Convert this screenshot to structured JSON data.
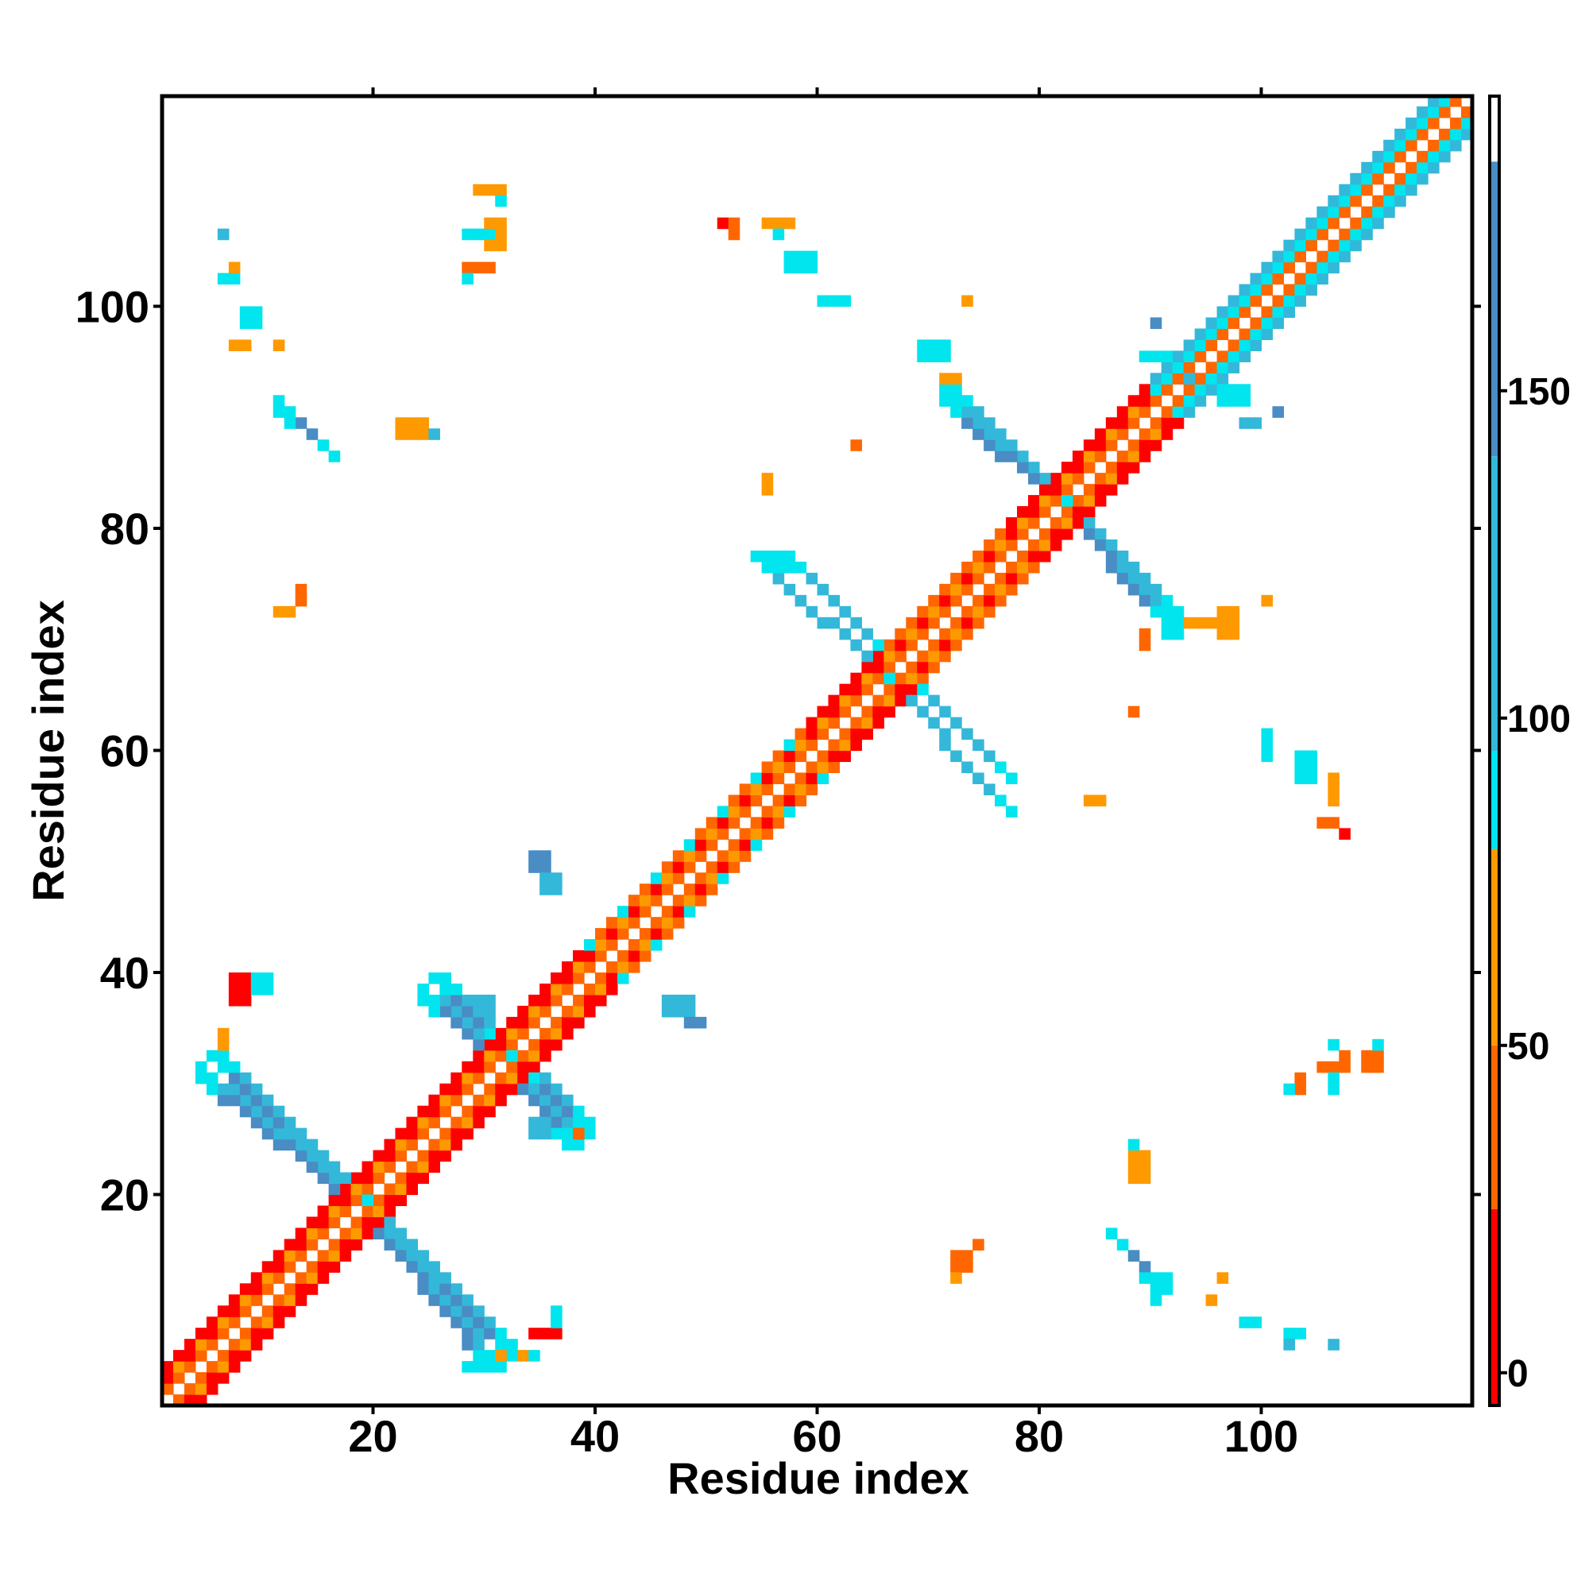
{
  "chart_data": {
    "type": "heatmap",
    "title": "",
    "xlabel": "Residue index",
    "ylabel": "Residue index",
    "xlim": [
      1,
      119
    ],
    "ylim": [
      1,
      119
    ],
    "x_ticks": [
      20,
      40,
      60,
      80,
      100
    ],
    "y_ticks": [
      20,
      40,
      60,
      80,
      100
    ],
    "colorbar": {
      "ticks": [
        0,
        50,
        100,
        150
      ],
      "range": [
        -5,
        195
      ],
      "segments": [
        {
          "from": -5,
          "to": 25,
          "color": "#ff0000"
        },
        {
          "from": 25,
          "to": 50,
          "color": "#ff6600"
        },
        {
          "from": 50,
          "to": 80,
          "color": "#ff9900"
        },
        {
          "from": 80,
          "to": 95,
          "color": "#00e5ee"
        },
        {
          "from": 95,
          "to": 140,
          "color": "#33b8d9"
        },
        {
          "from": 140,
          "to": 185,
          "color": "#4a8cc4"
        },
        {
          "from": 185,
          "to": 195,
          "color": "#ffffff"
        }
      ]
    },
    "colors": {
      "red": "#ff0000",
      "orange_red": "#ff6600",
      "orange": "#ff9900",
      "cyan": "#00e5ee",
      "sky": "#33b8d9",
      "steel": "#4a8cc4"
    },
    "diagonal": {
      "from": 1,
      "to": 119,
      "half_width": 3
    },
    "strands": [
      {
        "x0": 18,
        "y0": 19,
        "x1": 30,
        "y1": 4,
        "width": 2,
        "color": "steel"
      },
      {
        "x0": 18,
        "y0": 19,
        "x1": 5,
        "y1": 32,
        "width": 2,
        "color": "steel"
      },
      {
        "x0": 32,
        "y0": 31,
        "x1": 37,
        "y1": 24,
        "width": 2,
        "color": "steel"
      },
      {
        "x0": 32,
        "y0": 31,
        "x1": 25,
        "y1": 39,
        "width": 2,
        "color": "steel"
      },
      {
        "x0": 65,
        "y0": 67,
        "x1": 77,
        "y1": 54,
        "width": 1,
        "color": "sky"
      },
      {
        "x0": 66,
        "y0": 68,
        "x1": 57,
        "y1": 77,
        "width": 1,
        "color": "sky"
      },
      {
        "x0": 81,
        "y0": 82,
        "x1": 91,
        "y1": 71,
        "width": 2,
        "color": "steel"
      },
      {
        "x0": 81,
        "y0": 82,
        "x1": 71,
        "y1": 92,
        "width": 2,
        "color": "steel"
      },
      {
        "x0": 11,
        "y0": 91,
        "x1": 16,
        "y1": 86,
        "width": 1,
        "color": "steel"
      },
      {
        "x0": 87,
        "y0": 15,
        "x1": 90,
        "y1": 11,
        "width": 1,
        "color": "steel"
      }
    ],
    "patches": [
      {
        "x": 7,
        "y": 37,
        "w": 2,
        "h": 3,
        "color": "red"
      },
      {
        "x": 9,
        "y": 38,
        "w": 2,
        "h": 2,
        "color": "cyan"
      },
      {
        "x": 6,
        "y": 33,
        "w": 1,
        "h": 2,
        "color": "orange"
      },
      {
        "x": 29,
        "y": 36,
        "w": 2,
        "h": 2,
        "color": "sky"
      },
      {
        "x": 25,
        "y": 39,
        "w": 2,
        "h": 1,
        "color": "orange_red"
      },
      {
        "x": 34,
        "y": 49,
        "w": 2,
        "h": 2,
        "color": "steel"
      },
      {
        "x": 35,
        "y": 47,
        "w": 2,
        "h": 2,
        "color": "sky"
      },
      {
        "x": 46,
        "y": 36,
        "w": 3,
        "h": 2,
        "color": "sky"
      },
      {
        "x": 48,
        "y": 35,
        "w": 2,
        "h": 1,
        "color": "steel"
      },
      {
        "x": 34,
        "y": 25,
        "w": 2,
        "h": 2,
        "color": "sky"
      },
      {
        "x": 37,
        "y": 24,
        "w": 2,
        "h": 2,
        "color": "orange_red"
      },
      {
        "x": 34,
        "y": 7,
        "w": 3,
        "h": 1,
        "color": "red"
      },
      {
        "x": 36,
        "y": 8,
        "w": 1,
        "h": 2,
        "color": "cyan"
      },
      {
        "x": 31,
        "y": 5,
        "w": 3,
        "h": 1,
        "color": "orange"
      },
      {
        "x": 34,
        "y": 5,
        "w": 1,
        "h": 1,
        "color": "cyan"
      },
      {
        "x": 28,
        "y": 4,
        "w": 3,
        "h": 1,
        "color": "cyan"
      },
      {
        "x": 22,
        "y": 88,
        "w": 3,
        "h": 2,
        "color": "orange"
      },
      {
        "x": 25,
        "y": 88,
        "w": 1,
        "h": 1,
        "color": "sky"
      },
      {
        "x": 11,
        "y": 72,
        "w": 2,
        "h": 1,
        "color": "orange"
      },
      {
        "x": 13,
        "y": 73,
        "w": 1,
        "h": 2,
        "color": "orange_red"
      },
      {
        "x": 7,
        "y": 96,
        "w": 2,
        "h": 1,
        "color": "orange"
      },
      {
        "x": 8,
        "y": 98,
        "w": 2,
        "h": 2,
        "color": "cyan"
      },
      {
        "x": 6,
        "y": 102,
        "w": 2,
        "h": 1,
        "color": "cyan"
      },
      {
        "x": 7,
        "y": 103,
        "w": 1,
        "h": 1,
        "color": "orange"
      },
      {
        "x": 6,
        "y": 106,
        "w": 1,
        "h": 1,
        "color": "sky"
      },
      {
        "x": 11,
        "y": 96,
        "w": 1,
        "h": 1,
        "color": "orange"
      },
      {
        "x": 28,
        "y": 106,
        "w": 3,
        "h": 1,
        "color": "cyan"
      },
      {
        "x": 30,
        "y": 105,
        "w": 2,
        "h": 3,
        "color": "orange"
      },
      {
        "x": 29,
        "y": 110,
        "w": 3,
        "h": 1,
        "color": "orange"
      },
      {
        "x": 31,
        "y": 109,
        "w": 1,
        "h": 1,
        "color": "cyan"
      },
      {
        "x": 28,
        "y": 103,
        "w": 3,
        "h": 1,
        "color": "orange_red"
      },
      {
        "x": 28,
        "y": 102,
        "w": 1,
        "h": 1,
        "color": "cyan"
      },
      {
        "x": 51,
        "y": 107,
        "w": 1,
        "h": 1,
        "color": "red"
      },
      {
        "x": 52,
        "y": 106,
        "w": 1,
        "h": 2,
        "color": "orange_red"
      },
      {
        "x": 55,
        "y": 107,
        "w": 3,
        "h": 1,
        "color": "orange"
      },
      {
        "x": 56,
        "y": 106,
        "w": 1,
        "h": 1,
        "color": "cyan"
      },
      {
        "x": 57,
        "y": 103,
        "w": 3,
        "h": 2,
        "color": "cyan"
      },
      {
        "x": 60,
        "y": 100,
        "w": 3,
        "h": 1,
        "color": "cyan"
      },
      {
        "x": 73,
        "y": 100,
        "w": 1,
        "h": 1,
        "color": "orange"
      },
      {
        "x": 69,
        "y": 95,
        "w": 3,
        "h": 2,
        "color": "cyan"
      },
      {
        "x": 71,
        "y": 92,
        "w": 2,
        "h": 2,
        "color": "orange"
      },
      {
        "x": 63,
        "y": 87,
        "w": 1,
        "h": 1,
        "color": "orange_red"
      },
      {
        "x": 55,
        "y": 83,
        "w": 1,
        "h": 2,
        "color": "orange"
      },
      {
        "x": 55,
        "y": 76,
        "w": 3,
        "h": 2,
        "color": "cyan"
      },
      {
        "x": 84,
        "y": 55,
        "w": 2,
        "h": 1,
        "color": "orange"
      },
      {
        "x": 88,
        "y": 63,
        "w": 1,
        "h": 1,
        "color": "orange_red"
      },
      {
        "x": 100,
        "y": 59,
        "w": 1,
        "h": 3,
        "color": "cyan"
      },
      {
        "x": 103,
        "y": 57,
        "w": 2,
        "h": 3,
        "color": "cyan"
      },
      {
        "x": 106,
        "y": 55,
        "w": 1,
        "h": 3,
        "color": "orange"
      },
      {
        "x": 105,
        "y": 53,
        "w": 2,
        "h": 1,
        "color": "orange_red"
      },
      {
        "x": 107,
        "y": 52,
        "w": 1,
        "h": 1,
        "color": "red"
      },
      {
        "x": 100,
        "y": 73,
        "w": 1,
        "h": 1,
        "color": "orange"
      },
      {
        "x": 93,
        "y": 71,
        "w": 3,
        "h": 1,
        "color": "orange"
      },
      {
        "x": 96,
        "y": 70,
        "w": 2,
        "h": 3,
        "color": "orange"
      },
      {
        "x": 89,
        "y": 69,
        "w": 1,
        "h": 2,
        "color": "orange_red"
      },
      {
        "x": 91,
        "y": 70,
        "w": 2,
        "h": 1,
        "color": "cyan"
      },
      {
        "x": 103,
        "y": 29,
        "w": 1,
        "h": 2,
        "color": "orange_red"
      },
      {
        "x": 102,
        "y": 29,
        "w": 1,
        "h": 1,
        "color": "cyan"
      },
      {
        "x": 105,
        "y": 31,
        "w": 3,
        "h": 1,
        "color": "orange_red"
      },
      {
        "x": 106,
        "y": 29,
        "w": 1,
        "h": 2,
        "color": "cyan"
      },
      {
        "x": 106,
        "y": 33,
        "w": 1,
        "h": 1,
        "color": "cyan"
      },
      {
        "x": 107,
        "y": 32,
        "w": 1,
        "h": 1,
        "color": "orange_red"
      },
      {
        "x": 109,
        "y": 31,
        "w": 2,
        "h": 2,
        "color": "orange_red"
      },
      {
        "x": 110,
        "y": 33,
        "w": 1,
        "h": 1,
        "color": "cyan"
      },
      {
        "x": 88,
        "y": 21,
        "w": 2,
        "h": 3,
        "color": "orange"
      },
      {
        "x": 88,
        "y": 24,
        "w": 1,
        "h": 1,
        "color": "cyan"
      },
      {
        "x": 72,
        "y": 13,
        "w": 2,
        "h": 2,
        "color": "orange_red"
      },
      {
        "x": 74,
        "y": 15,
        "w": 1,
        "h": 1,
        "color": "orange_red"
      },
      {
        "x": 72,
        "y": 12,
        "w": 1,
        "h": 1,
        "color": "orange"
      },
      {
        "x": 91,
        "y": 12,
        "w": 1,
        "h": 1,
        "color": "cyan"
      },
      {
        "x": 90,
        "y": 10,
        "w": 1,
        "h": 1,
        "color": "cyan"
      },
      {
        "x": 96,
        "y": 12,
        "w": 1,
        "h": 1,
        "color": "orange"
      },
      {
        "x": 95,
        "y": 10,
        "w": 1,
        "h": 1,
        "color": "orange"
      },
      {
        "x": 98,
        "y": 8,
        "w": 2,
        "h": 1,
        "color": "cyan"
      },
      {
        "x": 102,
        "y": 7,
        "w": 2,
        "h": 1,
        "color": "cyan"
      },
      {
        "x": 102,
        "y": 6,
        "w": 1,
        "h": 1,
        "color": "sky"
      },
      {
        "x": 106,
        "y": 6,
        "w": 1,
        "h": 1,
        "color": "sky"
      },
      {
        "x": 90,
        "y": 98,
        "w": 1,
        "h": 1,
        "color": "steel"
      },
      {
        "x": 89,
        "y": 95,
        "w": 3,
        "h": 1,
        "color": "cyan"
      },
      {
        "x": 92,
        "y": 93,
        "w": 4,
        "h": 1,
        "color": "sky"
      },
      {
        "x": 96,
        "y": 91,
        "w": 3,
        "h": 2,
        "color": "cyan"
      },
      {
        "x": 98,
        "y": 89,
        "w": 2,
        "h": 1,
        "color": "sky"
      },
      {
        "x": 101,
        "y": 90,
        "w": 1,
        "h": 1,
        "color": "steel"
      }
    ]
  }
}
